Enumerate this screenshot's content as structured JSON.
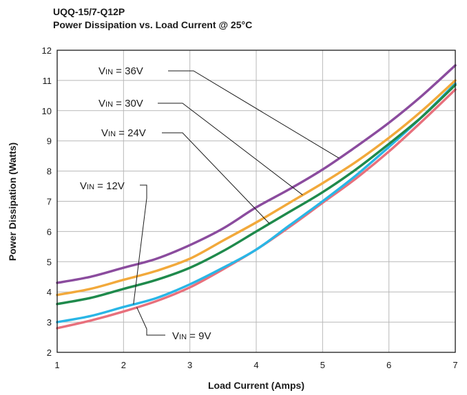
{
  "chart_data": {
    "type": "line",
    "title": "UQQ-15/7-Q12P",
    "subtitle": "Power Dissipation vs. Load Current @ 25°C",
    "xlabel": "Load Current (Amps)",
    "ylabel": "Power Dissipation (Watts)",
    "xlim": [
      1,
      7
    ],
    "ylim": [
      2,
      12
    ],
    "xticks": [
      1,
      2,
      3,
      4,
      5,
      6,
      7
    ],
    "yticks": [
      2,
      3,
      4,
      5,
      6,
      7,
      8,
      9,
      10,
      11,
      12
    ],
    "grid": true,
    "series": [
      {
        "name": "VIN = 36V",
        "color": "#8b4c9e",
        "x": [
          1,
          1.5,
          2,
          2.5,
          3,
          3.5,
          4,
          4.5,
          5,
          5.5,
          6,
          6.5,
          7
        ],
        "y": [
          4.3,
          4.5,
          4.8,
          5.1,
          5.55,
          6.1,
          6.8,
          7.4,
          8.05,
          8.8,
          9.6,
          10.5,
          11.5
        ]
      },
      {
        "name": "VIN = 30V",
        "color": "#f2a93b",
        "x": [
          1,
          1.5,
          2,
          2.5,
          3,
          3.5,
          4,
          4.5,
          5,
          5.5,
          6,
          6.5,
          7
        ],
        "y": [
          3.9,
          4.1,
          4.4,
          4.7,
          5.1,
          5.7,
          6.3,
          6.95,
          7.6,
          8.3,
          9.1,
          10.0,
          11.0
        ]
      },
      {
        "name": "VIN = 24V",
        "color": "#1f8a4c",
        "x": [
          1,
          1.5,
          2,
          2.5,
          3,
          3.5,
          4,
          4.5,
          5,
          5.5,
          6,
          6.5,
          7
        ],
        "y": [
          3.6,
          3.8,
          4.1,
          4.4,
          4.8,
          5.35,
          6.0,
          6.65,
          7.3,
          8.05,
          8.9,
          9.8,
          10.85
        ]
      },
      {
        "name": "VIN = 12V",
        "color": "#29b6e6",
        "x": [
          1,
          1.5,
          2,
          2.5,
          3,
          3.5,
          4,
          4.5,
          5,
          5.5,
          6,
          6.5,
          7
        ],
        "y": [
          3.0,
          3.2,
          3.5,
          3.8,
          4.25,
          4.8,
          5.4,
          6.2,
          7.0,
          7.85,
          8.8,
          9.8,
          10.9
        ]
      },
      {
        "name": "VIN = 9V",
        "color": "#e8707c",
        "x": [
          1,
          1.5,
          2,
          2.5,
          3,
          3.5,
          4,
          4.5,
          5,
          5.5,
          6,
          6.5,
          7
        ],
        "y": [
          2.8,
          3.05,
          3.35,
          3.7,
          4.15,
          4.75,
          5.4,
          6.15,
          6.95,
          7.75,
          8.65,
          9.65,
          10.7
        ]
      }
    ],
    "annotations": [
      {
        "label": "VIN = 36V",
        "pre": "V",
        "sub": "IN",
        "post": " = 36V",
        "series": 0,
        "target_x": 5.25
      },
      {
        "label": "VIN = 30V",
        "pre": "V",
        "sub": "IN",
        "post": " = 30V",
        "series": 1,
        "target_x": 4.7
      },
      {
        "label": "VIN = 24V",
        "pre": "V",
        "sub": "IN",
        "post": " = 24V",
        "series": 2,
        "target_x": 4.2
      },
      {
        "label": "VIN = 12V",
        "pre": "V",
        "sub": "IN",
        "post": " = 12V",
        "series": 3,
        "target_x": 2.15
      },
      {
        "label": "VIN = 9V",
        "pre": "V",
        "sub": "IN",
        "post": " = 9V",
        "series": 4,
        "target_x": 2.2
      }
    ]
  }
}
